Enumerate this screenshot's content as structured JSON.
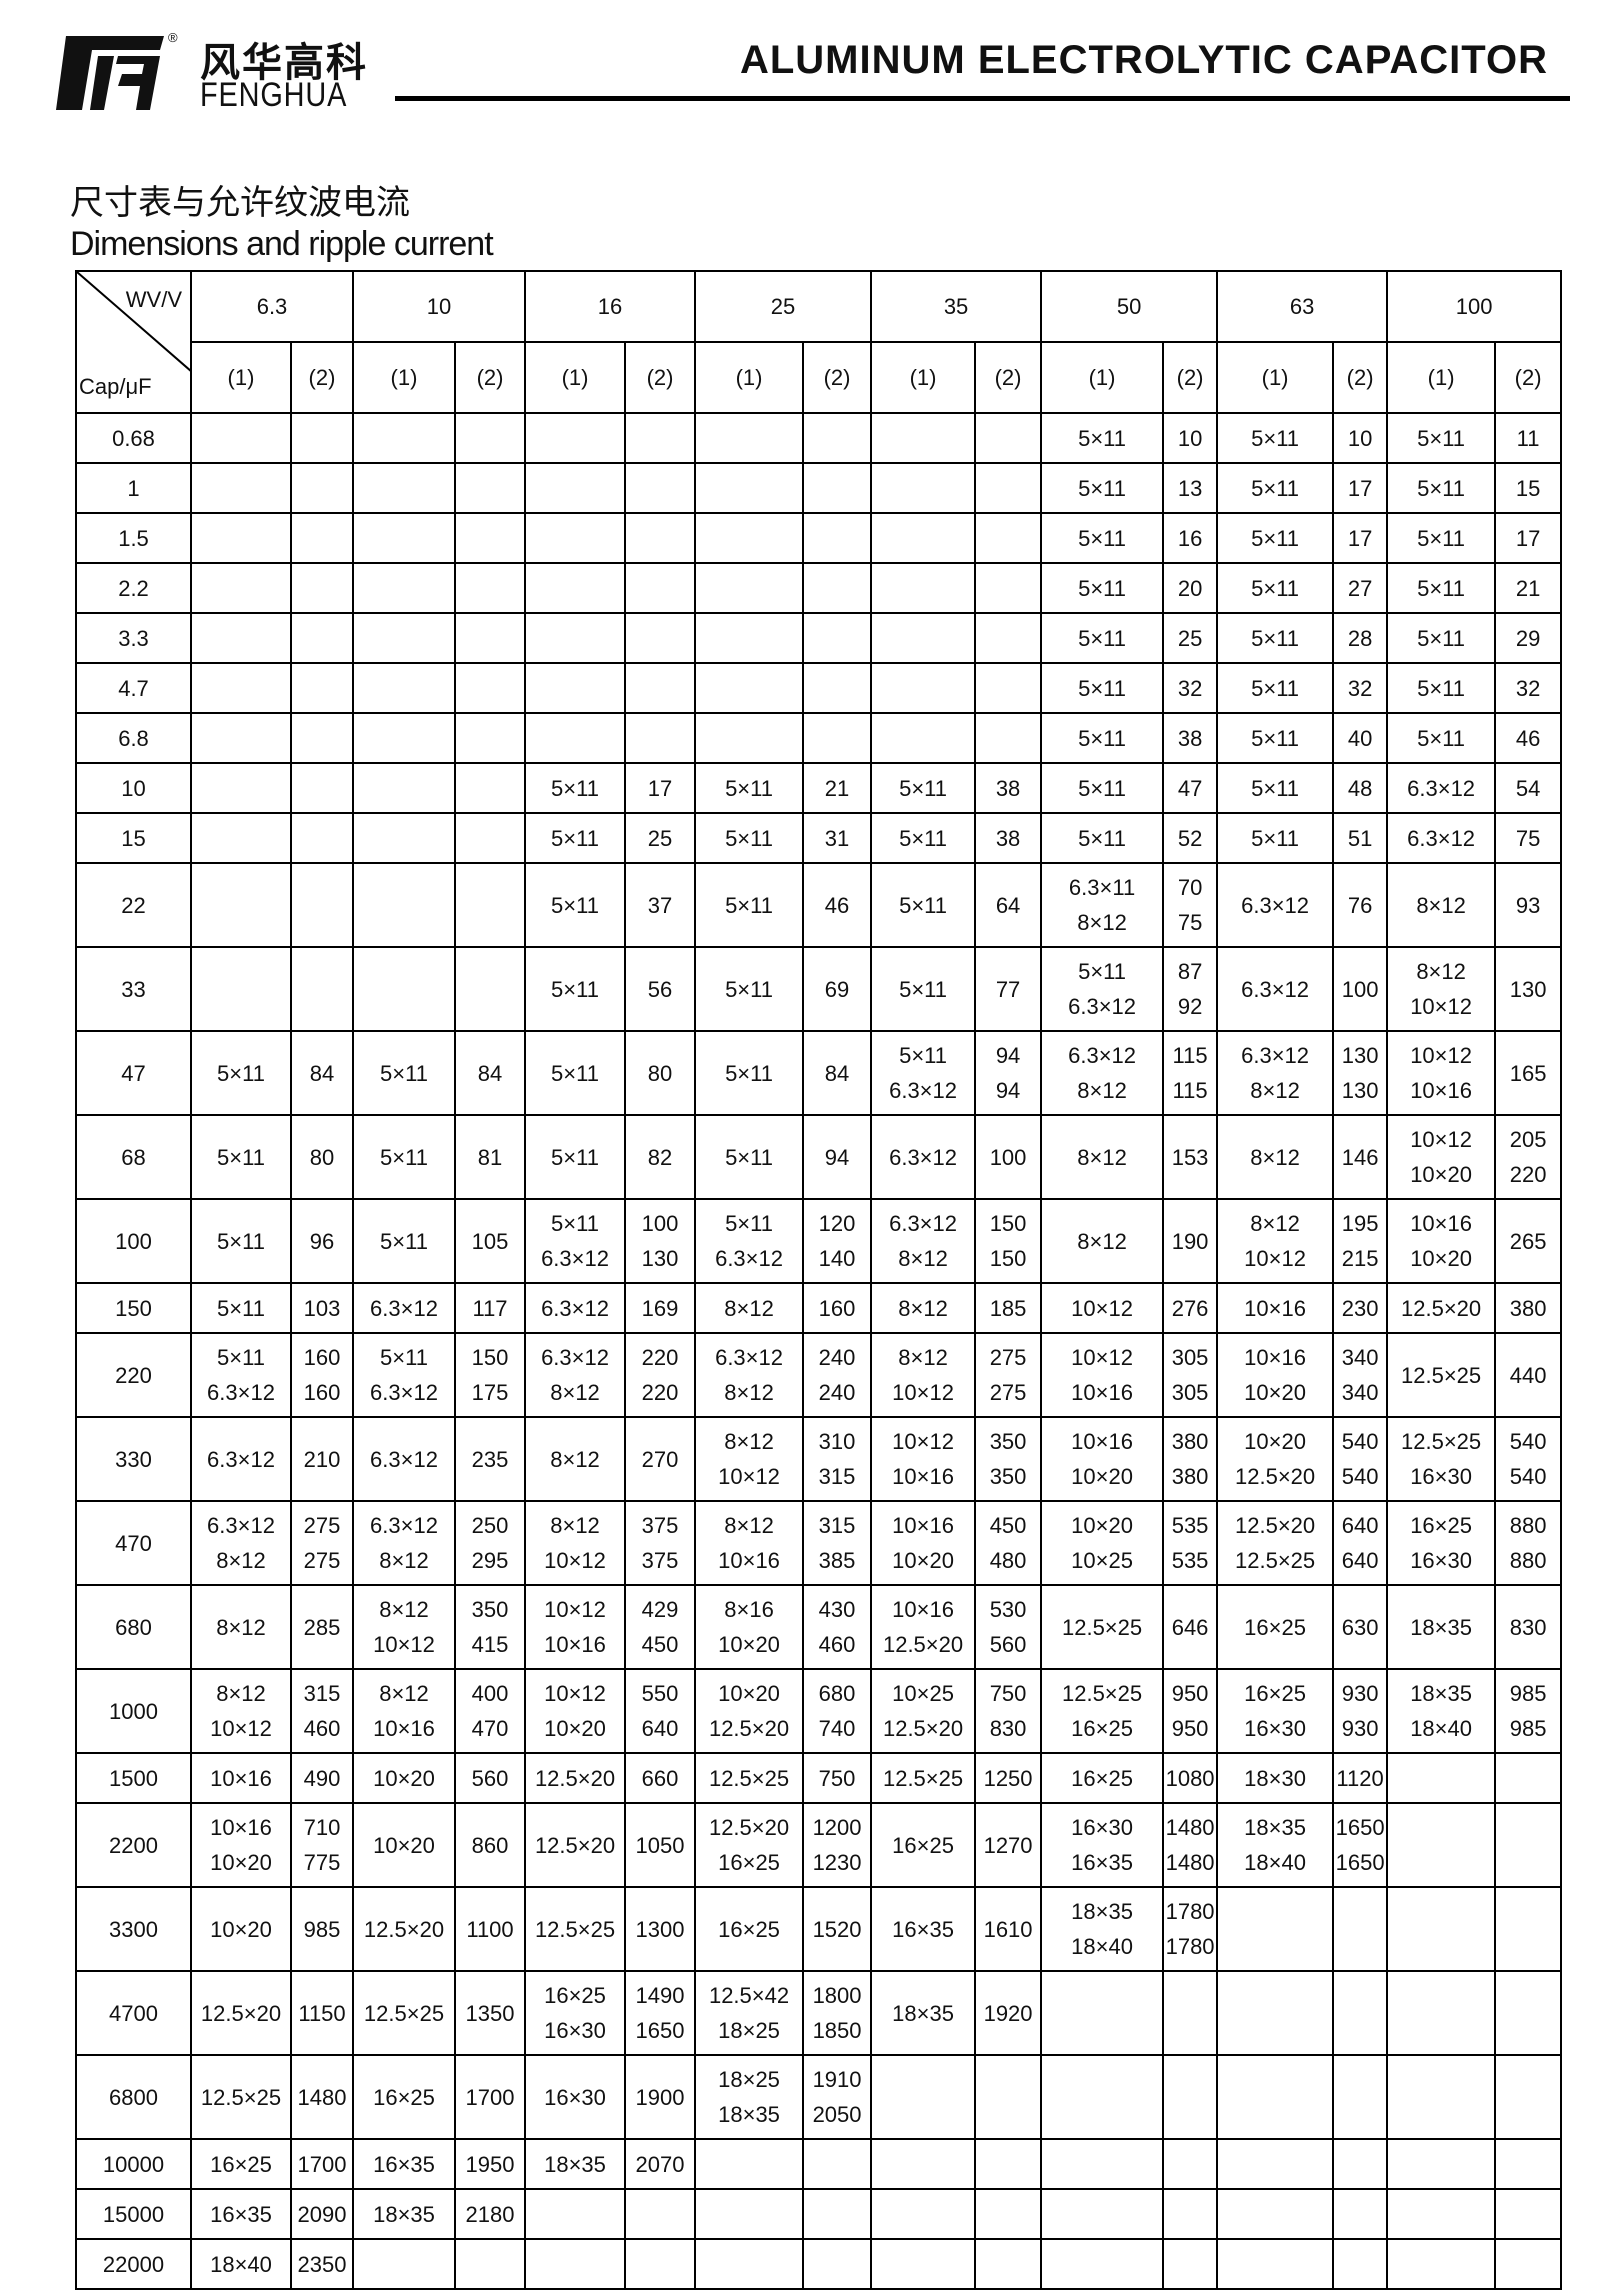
{
  "header": {
    "brand_cn": "风华高科",
    "brand_en": "FENGHUA",
    "registered_mark": "®",
    "title": "ALUMINUM ELECTROLYTIC CAPACITOR"
  },
  "section": {
    "title_cn": "尺寸表与允许纹波电流",
    "title_en": "Dimensions and ripple current"
  },
  "table": {
    "corner_top": "WV/V",
    "corner_bottom": "Cap/μF",
    "voltages": [
      "6.3",
      "10",
      "16",
      "25",
      "35",
      "50",
      "63",
      "100"
    ],
    "sub_headers": [
      "(1)",
      "(2)"
    ],
    "rows": [
      {
        "cap": "0.68",
        "cells": [
          "",
          "",
          "",
          "",
          "",
          "",
          "",
          "",
          "",
          "",
          "5×11",
          "10",
          "5×11",
          "10",
          "5×11",
          "11"
        ]
      },
      {
        "cap": "1",
        "cells": [
          "",
          "",
          "",
          "",
          "",
          "",
          "",
          "",
          "",
          "",
          "5×11",
          "13",
          "5×11",
          "17",
          "5×11",
          "15"
        ]
      },
      {
        "cap": "1.5",
        "cells": [
          "",
          "",
          "",
          "",
          "",
          "",
          "",
          "",
          "",
          "",
          "5×11",
          "16",
          "5×11",
          "17",
          "5×11",
          "17"
        ]
      },
      {
        "cap": "2.2",
        "cells": [
          "",
          "",
          "",
          "",
          "",
          "",
          "",
          "",
          "",
          "",
          "5×11",
          "20",
          "5×11",
          "27",
          "5×11",
          "21"
        ]
      },
      {
        "cap": "3.3",
        "cells": [
          "",
          "",
          "",
          "",
          "",
          "",
          "",
          "",
          "",
          "",
          "5×11",
          "25",
          "5×11",
          "28",
          "5×11",
          "29"
        ]
      },
      {
        "cap": "4.7",
        "cells": [
          "",
          "",
          "",
          "",
          "",
          "",
          "",
          "",
          "",
          "",
          "5×11",
          "32",
          "5×11",
          "32",
          "5×11",
          "32"
        ]
      },
      {
        "cap": "6.8",
        "cells": [
          "",
          "",
          "",
          "",
          "",
          "",
          "",
          "",
          "",
          "",
          "5×11",
          "38",
          "5×11",
          "40",
          "5×11",
          "46"
        ]
      },
      {
        "cap": "10",
        "cells": [
          "",
          "",
          "",
          "",
          "5×11",
          "17",
          "5×11",
          "21",
          "5×11",
          "38",
          "5×11",
          "47",
          "5×11",
          "48",
          "6.3×12",
          "54"
        ]
      },
      {
        "cap": "15",
        "cells": [
          "",
          "",
          "",
          "",
          "5×11",
          "25",
          "5×11",
          "31",
          "5×11",
          "38",
          "5×11",
          "52",
          "5×11",
          "51",
          "6.3×12",
          "75"
        ]
      },
      {
        "cap": "22",
        "cells": [
          "",
          "",
          "",
          "",
          "5×11",
          "37",
          "5×11",
          "46",
          "5×11",
          "64",
          "6.3×11\n8×12",
          "70\n75",
          "6.3×12",
          "76",
          "8×12",
          "93"
        ]
      },
      {
        "cap": "33",
        "cells": [
          "",
          "",
          "",
          "",
          "5×11",
          "56",
          "5×11",
          "69",
          "5×11",
          "77",
          "5×11\n6.3×12",
          "87\n92",
          "6.3×12",
          "100",
          "8×12\n10×12",
          "130"
        ]
      },
      {
        "cap": "47",
        "cells": [
          "5×11",
          "84",
          "5×11",
          "84",
          "5×11",
          "80",
          "5×11",
          "84",
          "5×11\n6.3×12",
          "94\n94",
          "6.3×12\n8×12",
          "115\n115",
          "6.3×12\n8×12",
          "130\n130",
          "10×12\n10×16",
          "165"
        ]
      },
      {
        "cap": "68",
        "cells": [
          "5×11",
          "80",
          "5×11",
          "81",
          "5×11",
          "82",
          "5×11",
          "94",
          "6.3×12",
          "100",
          "8×12",
          "153",
          "8×12",
          "146",
          "10×12\n10×20",
          "205\n220"
        ]
      },
      {
        "cap": "100",
        "cells": [
          "5×11",
          "96",
          "5×11",
          "105",
          "5×11\n6.3×12",
          "100\n130",
          "5×11\n6.3×12",
          "120\n140",
          "6.3×12\n8×12",
          "150\n150",
          "8×12",
          "190",
          "8×12\n10×12",
          "195\n215",
          "10×16\n10×20",
          "265"
        ]
      },
      {
        "cap": "150",
        "cells": [
          "5×11",
          "103",
          "6.3×12",
          "117",
          "6.3×12",
          "169",
          "8×12",
          "160",
          "8×12",
          "185",
          "10×12",
          "276",
          "10×16",
          "230",
          "12.5×20",
          "380"
        ]
      },
      {
        "cap": "220",
        "cells": [
          "5×11\n6.3×12",
          "160\n160",
          "5×11\n6.3×12",
          "150\n175",
          "6.3×12\n8×12",
          "220\n220",
          "6.3×12\n8×12",
          "240\n240",
          "8×12\n10×12",
          "275\n275",
          "10×12\n10×16",
          "305\n305",
          "10×16\n10×20",
          "340\n340",
          "12.5×25",
          "440"
        ]
      },
      {
        "cap": "330",
        "cells": [
          "6.3×12",
          "210",
          "6.3×12",
          "235",
          "8×12",
          "270",
          "8×12\n10×12",
          "310\n315",
          "10×12\n10×16",
          "350\n350",
          "10×16\n10×20",
          "380\n380",
          "10×20\n12.5×20",
          "540\n540",
          "12.5×25\n16×30",
          "540\n540"
        ]
      },
      {
        "cap": "470",
        "cells": [
          "6.3×12\n8×12",
          "275\n275",
          "6.3×12\n8×12",
          "250\n295",
          "8×12\n10×12",
          "375\n375",
          "8×12\n10×16",
          "315\n385",
          "10×16\n10×20",
          "450\n480",
          "10×20\n10×25",
          "535\n535",
          "12.5×20\n12.5×25",
          "640\n640",
          "16×25\n16×30",
          "880\n880"
        ]
      },
      {
        "cap": "680",
        "cells": [
          "8×12",
          "285",
          "8×12\n10×12",
          "350\n415",
          "10×12\n10×16",
          "429\n450",
          "8×16\n10×20",
          "430\n460",
          "10×16\n12.5×20",
          "530\n560",
          "12.5×25",
          "646",
          "16×25",
          "630",
          "18×35",
          "830"
        ]
      },
      {
        "cap": "1000",
        "cells": [
          "8×12\n10×12",
          "315\n460",
          "8×12\n10×16",
          "400\n470",
          "10×12\n10×20",
          "550\n640",
          "10×20\n12.5×20",
          "680\n740",
          "10×25\n12.5×20",
          "750\n830",
          "12.5×25\n16×25",
          "950\n950",
          "16×25\n16×30",
          "930\n930",
          "18×35\n18×40",
          "985\n985"
        ]
      },
      {
        "cap": "1500",
        "cells": [
          "10×16",
          "490",
          "10×20",
          "560",
          "12.5×20",
          "660",
          "12.5×25",
          "750",
          "12.5×25",
          "1250",
          "16×25",
          "1080",
          "18×30",
          "1120",
          "",
          ""
        ]
      },
      {
        "cap": "2200",
        "cells": [
          "10×16\n10×20",
          "710\n775",
          "10×20",
          "860",
          "12.5×20",
          "1050",
          "12.5×20\n16×25",
          "1200\n1230",
          "16×25",
          "1270",
          "16×30\n16×35",
          "1480\n1480",
          "18×35\n18×40",
          "1650\n1650",
          "",
          ""
        ]
      },
      {
        "cap": "3300",
        "cells": [
          "10×20",
          "985",
          "12.5×20",
          "1100",
          "12.5×25",
          "1300",
          "16×25",
          "1520",
          "16×35",
          "1610",
          "18×35\n18×40",
          "1780\n1780",
          "",
          "",
          "",
          ""
        ]
      },
      {
        "cap": "4700",
        "cells": [
          "12.5×20",
          "1150",
          "12.5×25",
          "1350",
          "16×25\n16×30",
          "1490\n1650",
          "12.5×42\n18×25",
          "1800\n1850",
          "18×35",
          "1920",
          "",
          "",
          "",
          "",
          "",
          ""
        ]
      },
      {
        "cap": "6800",
        "cells": [
          "12.5×25",
          "1480",
          "16×25",
          "1700",
          "16×30",
          "1900",
          "18×25\n18×35",
          "1910\n2050",
          "",
          "",
          "",
          "",
          "",
          "",
          "",
          ""
        ]
      },
      {
        "cap": "10000",
        "cells": [
          "16×25",
          "1700",
          "16×35",
          "1950",
          "18×35",
          "2070",
          "",
          "",
          "",
          "",
          "",
          "",
          "",
          "",
          "",
          ""
        ]
      },
      {
        "cap": "15000",
        "cells": [
          "16×35",
          "2090",
          "18×35",
          "2180",
          "",
          "",
          "",
          "",
          "",
          "",
          "",
          "",
          "",
          "",
          "",
          ""
        ]
      },
      {
        "cap": "22000",
        "cells": [
          "18×40",
          "2350",
          "",
          "",
          "",
          "",
          "",
          "",
          "",
          "",
          "",
          "",
          "",
          "",
          "",
          ""
        ]
      }
    ]
  }
}
